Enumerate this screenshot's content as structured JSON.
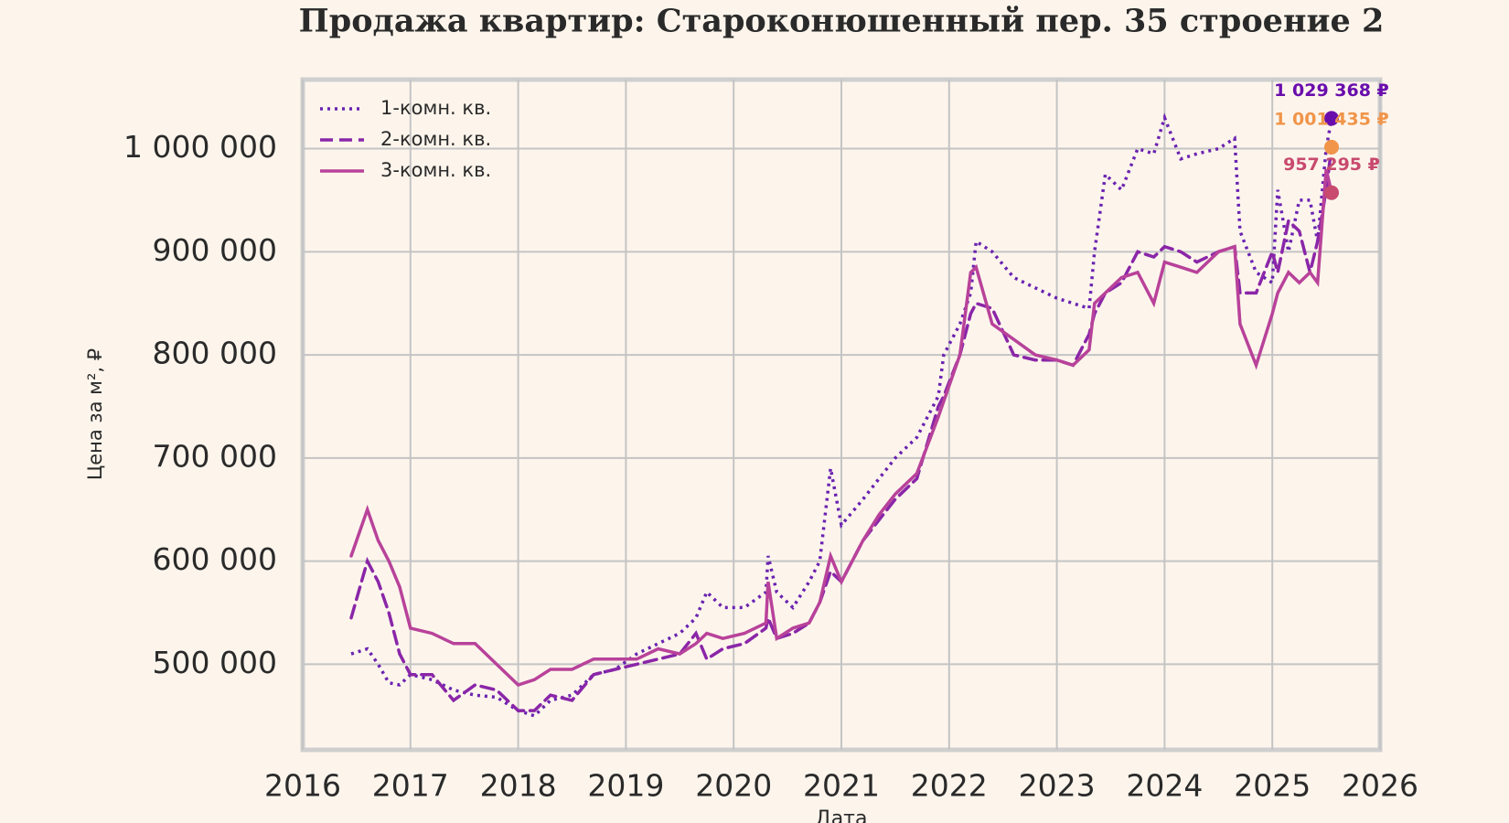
{
  "chart_data": {
    "type": "line",
    "title": "Продажа квартир: Староконюшенный пер. 35 строение 2",
    "xlabel": "Дата",
    "ylabel": "Цена за м², ₽",
    "x": [
      2016.45,
      2016.6,
      2016.7,
      2016.8,
      2016.9,
      2017.0,
      2017.2,
      2017.4,
      2017.6,
      2017.8,
      2018.0,
      2018.15,
      2018.3,
      2018.5,
      2018.7,
      2018.9,
      2019.1,
      2019.3,
      2019.5,
      2019.65,
      2019.75,
      2019.9,
      2020.1,
      2020.3,
      2020.32,
      2020.4,
      2020.55,
      2020.7,
      2020.8,
      2020.9,
      2021.0,
      2021.2,
      2021.35,
      2021.5,
      2021.7,
      2021.9,
      2021.95,
      2022.1,
      2022.2,
      2022.25,
      2022.4,
      2022.6,
      2022.8,
      2023.0,
      2023.15,
      2023.3,
      2023.35,
      2023.45,
      2023.6,
      2023.75,
      2023.9,
      2024.0,
      2024.15,
      2024.3,
      2024.5,
      2024.65,
      2024.7,
      2024.85,
      2025.0,
      2025.05,
      2025.15,
      2025.25,
      2025.35,
      2025.42,
      2025.5,
      2025.55
    ],
    "series": [
      {
        "name": "1-комн. кв.",
        "color": "#6a22b0",
        "linestyle": "dotted",
        "values": [
          510000,
          515000,
          500000,
          482000,
          480000,
          490000,
          485000,
          475000,
          470000,
          468000,
          455000,
          450000,
          465000,
          470000,
          490000,
          495000,
          510000,
          520000,
          530000,
          545000,
          570000,
          555000,
          555000,
          570000,
          605000,
          570000,
          555000,
          580000,
          600000,
          690000,
          635000,
          660000,
          680000,
          700000,
          720000,
          760000,
          800000,
          830000,
          860000,
          910000,
          900000,
          875000,
          865000,
          855000,
          850000,
          845000,
          900000,
          975000,
          960000,
          1000000,
          995000,
          1030000,
          990000,
          995000,
          1000000,
          1010000,
          920000,
          880000,
          870000,
          960000,
          900000,
          950000,
          950000,
          910000,
          1000000,
          1029368
        ]
      },
      {
        "name": "2-комн. кв.",
        "color": "#8a26a8",
        "linestyle": "dashed",
        "values": [
          545000,
          600000,
          580000,
          550000,
          510000,
          490000,
          490000,
          465000,
          480000,
          475000,
          455000,
          455000,
          470000,
          465000,
          490000,
          495000,
          500000,
          505000,
          510000,
          530000,
          505000,
          515000,
          520000,
          535000,
          545000,
          525000,
          530000,
          540000,
          560000,
          590000,
          580000,
          620000,
          640000,
          660000,
          680000,
          750000,
          760000,
          800000,
          840000,
          850000,
          845000,
          800000,
          795000,
          795000,
          790000,
          820000,
          840000,
          860000,
          870000,
          900000,
          895000,
          905000,
          900000,
          890000,
          900000,
          905000,
          860000,
          860000,
          900000,
          880000,
          930000,
          920000,
          880000,
          910000,
          960000,
          1001435
        ]
      },
      {
        "name": "3-комн. кв.",
        "color": "#b8429a",
        "linestyle": "solid",
        "values": [
          605000,
          650000,
          620000,
          600000,
          575000,
          535000,
          530000,
          520000,
          520000,
          500000,
          480000,
          485000,
          495000,
          495000,
          505000,
          505000,
          505000,
          515000,
          510000,
          520000,
          530000,
          525000,
          530000,
          540000,
          580000,
          525000,
          535000,
          540000,
          560000,
          605000,
          580000,
          620000,
          645000,
          665000,
          685000,
          740000,
          755000,
          800000,
          880000,
          885000,
          830000,
          815000,
          800000,
          795000,
          790000,
          805000,
          850000,
          860000,
          875000,
          880000,
          850000,
          890000,
          885000,
          880000,
          900000,
          905000,
          830000,
          790000,
          840000,
          860000,
          880000,
          870000,
          880000,
          870000,
          980000,
          957295
        ]
      }
    ],
    "annotations": [
      {
        "x": 2025.55,
        "value": 1029368,
        "label": "1 029 368 ₽",
        "color": "#6a0dad"
      },
      {
        "x": 2025.55,
        "value": 1001435,
        "label": "1 001 435 ₽",
        "color": "#f0954a"
      },
      {
        "x": 2025.55,
        "value": 957295,
        "label": "957 295 ₽",
        "color": "#c84a6e"
      }
    ],
    "xlim": [
      2016,
      2026
    ],
    "xticks": [
      2016,
      2017,
      2018,
      2019,
      2020,
      2021,
      2022,
      2023,
      2024,
      2025,
      2026
    ],
    "ylim": [
      417000,
      1067000
    ],
    "yticks": [
      {
        "value": 500000,
        "label": "500 000"
      },
      {
        "value": 600000,
        "label": "600 000"
      },
      {
        "value": 700000,
        "label": "700 000"
      },
      {
        "value": 800000,
        "label": "800 000"
      },
      {
        "value": 900000,
        "label": "900 000"
      },
      {
        "value": 1000000,
        "label": "1 000 000"
      }
    ],
    "grid": true,
    "legend": "upper left"
  }
}
